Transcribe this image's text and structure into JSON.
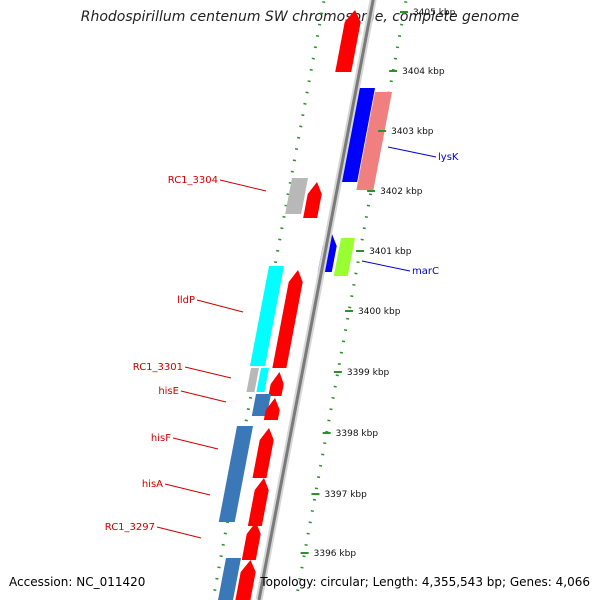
{
  "title": "Rhodospirillum centenum SW chromosome, complete genome",
  "accession": "Accession: NC_011420",
  "topology": "Topology: circular; Length: 4,355,543 bp; Genes: 4,066",
  "colors": {
    "backbone": "#8c8c8c",
    "scale_dots": "#2d8f2d",
    "label_left": "#cc0000",
    "label_right": "#0000cc",
    "forward_gene": "#ff0000",
    "reverse_gene": "#3a78b8",
    "rna": "#00ffff",
    "pseudo": "#b8b8b8",
    "blue": "#0000ff",
    "pink": "#f08080",
    "lime": "#99ff33"
  },
  "scale_ticks": [
    {
      "kbp": 3405,
      "label": "3405 kbp"
    },
    {
      "kbp": 3404,
      "label": "3404 kbp"
    },
    {
      "kbp": 3403,
      "label": "3403 kbp"
    },
    {
      "kbp": 3402,
      "label": "3402 kbp"
    },
    {
      "kbp": 3401,
      "label": "3401 kbp"
    },
    {
      "kbp": 3400,
      "label": "3400 kbp"
    },
    {
      "kbp": 3399,
      "label": "3399 kbp"
    },
    {
      "kbp": 3398,
      "label": "3398 kbp"
    },
    {
      "kbp": 3397,
      "label": "3397 kbp"
    },
    {
      "kbp": 3396,
      "label": "3396 kbp"
    }
  ],
  "gene_labels_left": [
    {
      "name": "RC1_3304"
    },
    {
      "name": "lldP"
    },
    {
      "name": "RC1_3301"
    },
    {
      "name": "hisE"
    },
    {
      "name": "hisF"
    },
    {
      "name": "hisA"
    },
    {
      "name": "RC1_3297"
    }
  ],
  "gene_labels_right": [
    {
      "name": "lysK"
    },
    {
      "name": "marC"
    }
  ]
}
